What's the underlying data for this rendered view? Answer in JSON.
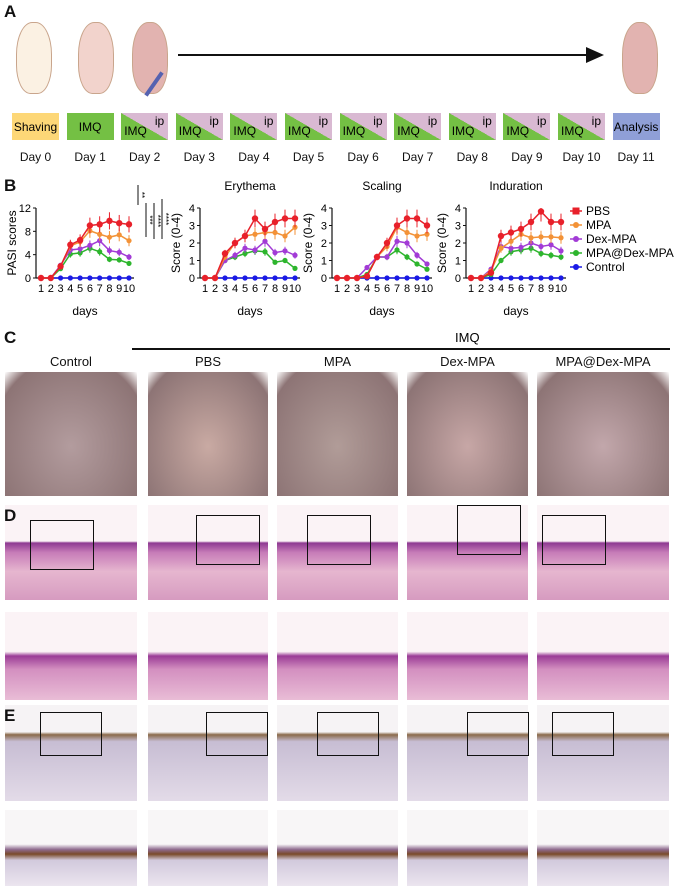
{
  "panelA": {
    "label": "A",
    "boxes": [
      {
        "type": "shaving",
        "text": "Shaving"
      },
      {
        "type": "imq",
        "text": "IMQ"
      },
      {
        "type": "split",
        "a": "IMQ",
        "b": "ip"
      },
      {
        "type": "split",
        "a": "IMQ",
        "b": "ip"
      },
      {
        "type": "split",
        "a": "IMQ",
        "b": "ip"
      },
      {
        "type": "split",
        "a": "IMQ",
        "b": "ip"
      },
      {
        "type": "split",
        "a": "IMQ",
        "b": "ip"
      },
      {
        "type": "split",
        "a": "IMQ",
        "b": "ip"
      },
      {
        "type": "split",
        "a": "IMQ",
        "b": "ip"
      },
      {
        "type": "split",
        "a": "IMQ",
        "b": "ip"
      },
      {
        "type": "split",
        "a": "IMQ",
        "b": "ip"
      },
      {
        "type": "analysis",
        "text": "Analysis"
      }
    ],
    "days": [
      "Day 0",
      "Day 1",
      "Day 2",
      "Day 3",
      "Day 4",
      "Day 5",
      "Day 6",
      "Day 7",
      "Day 8",
      "Day 9",
      "Day 10",
      "Day 11"
    ]
  },
  "panelB": {
    "label": "B",
    "significance": [
      "**",
      "***",
      "****",
      "****"
    ]
  },
  "chart_data": [
    {
      "type": "line",
      "title": "",
      "ylabel": "PASI scores",
      "xlabel": "days",
      "ylim": [
        0,
        12
      ],
      "yticks": [
        0,
        4,
        8,
        12
      ],
      "x": [
        1,
        2,
        3,
        4,
        5,
        6,
        7,
        8,
        9,
        10
      ],
      "series": [
        {
          "name": "PBS",
          "values": [
            0,
            0,
            2,
            5.7,
            6.5,
            9,
            9.2,
            9.8,
            9.4,
            9.2
          ]
        },
        {
          "name": "MPA",
          "values": [
            0,
            0,
            2,
            5.5,
            6.2,
            8.1,
            7.5,
            7,
            7.4,
            6.4
          ]
        },
        {
          "name": "Dex-MPA",
          "values": [
            0,
            0,
            2.2,
            4.8,
            5,
            5.6,
            6.4,
            4.7,
            4.4,
            3.6
          ]
        },
        {
          "name": "MPA@Dex-MPA",
          "values": [
            0,
            0,
            1.6,
            4.1,
            4.3,
            5.1,
            4.5,
            3.2,
            3.1,
            2.5
          ]
        },
        {
          "name": "Control",
          "values": [
            0,
            0,
            0,
            0,
            0,
            0,
            0,
            0,
            0,
            0
          ]
        }
      ]
    },
    {
      "type": "line",
      "title": "Erythema",
      "ylabel": "Score (0-4)",
      "xlabel": "days",
      "ylim": [
        0,
        4
      ],
      "yticks": [
        0,
        1,
        2,
        3,
        4
      ],
      "x": [
        1,
        2,
        3,
        4,
        5,
        6,
        7,
        8,
        9,
        10
      ],
      "series": [
        {
          "name": "PBS",
          "values": [
            0,
            0,
            1.4,
            2,
            2.4,
            3.4,
            2.8,
            3.2,
            3.4,
            3.4
          ]
        },
        {
          "name": "MPA",
          "values": [
            0,
            0,
            1.2,
            2,
            2.4,
            2.5,
            2.6,
            2.6,
            2.4,
            2.9
          ]
        },
        {
          "name": "Dex-MPA",
          "values": [
            0,
            0,
            1,
            1.3,
            1.7,
            1.6,
            2.1,
            1.45,
            1.55,
            1.3
          ]
        },
        {
          "name": "MPA@Dex-MPA",
          "values": [
            0,
            0,
            1,
            1.2,
            1.4,
            1.55,
            1.5,
            0.9,
            1,
            0.55
          ]
        },
        {
          "name": "Control",
          "values": [
            0,
            0,
            0,
            0,
            0,
            0,
            0,
            0,
            0,
            0
          ]
        }
      ]
    },
    {
      "type": "line",
      "title": "Scaling",
      "ylabel": "Score (0-4)",
      "xlabel": "days",
      "ylim": [
        0,
        4
      ],
      "yticks": [
        0,
        1,
        2,
        3,
        4
      ],
      "x": [
        1,
        2,
        3,
        4,
        5,
        6,
        7,
        8,
        9,
        10
      ],
      "series": [
        {
          "name": "PBS",
          "values": [
            0,
            0,
            0,
            0.1,
            1.2,
            2,
            3,
            3.4,
            3.4,
            3
          ]
        },
        {
          "name": "MPA",
          "values": [
            0,
            0,
            0,
            0.1,
            1.2,
            1.8,
            2.9,
            2.6,
            2.4,
            2.5
          ]
        },
        {
          "name": "Dex-MPA",
          "values": [
            0,
            0,
            0,
            0.6,
            1.2,
            1.2,
            2.1,
            2,
            1.3,
            0.8
          ]
        },
        {
          "name": "MPA@Dex-MPA",
          "values": [
            0,
            0,
            0,
            0.2,
            1.2,
            1.2,
            1.6,
            1.2,
            0.8,
            0.5
          ]
        },
        {
          "name": "Control",
          "values": [
            0,
            0,
            0,
            0,
            0,
            0,
            0,
            0,
            0,
            0
          ]
        }
      ]
    },
    {
      "type": "line",
      "title": "Induration",
      "ylabel": "Score (0-4)",
      "xlabel": "days",
      "ylim": [
        0,
        4
      ],
      "yticks": [
        0,
        1,
        2,
        3,
        4
      ],
      "x": [
        1,
        2,
        3,
        4,
        5,
        6,
        7,
        8,
        9,
        10
      ],
      "series": [
        {
          "name": "PBS",
          "values": [
            0,
            0,
            0.3,
            2.4,
            2.6,
            2.8,
            3.2,
            3.8,
            3.2,
            3.2
          ]
        },
        {
          "name": "MPA",
          "values": [
            0,
            0,
            0.4,
            1.7,
            2.1,
            2.5,
            2.3,
            2.35,
            2.35,
            2.3
          ]
        },
        {
          "name": "Dex-MPA",
          "values": [
            0,
            0,
            0.5,
            1.8,
            1.7,
            1.75,
            2,
            1.8,
            1.9,
            1.55
          ]
        },
        {
          "name": "MPA@Dex-MPA",
          "values": [
            0,
            0,
            0.2,
            1,
            1.5,
            1.6,
            1.7,
            1.4,
            1.3,
            1.2
          ]
        },
        {
          "name": "Control",
          "values": [
            0,
            0,
            0,
            0,
            0,
            0,
            0,
            0,
            0,
            0
          ]
        }
      ]
    }
  ],
  "legend": [
    {
      "name": "PBS",
      "color": "#e8202a",
      "marker": "square"
    },
    {
      "name": "MPA",
      "color": "#f39237",
      "marker": "diamond"
    },
    {
      "name": "Dex-MPA",
      "color": "#a23bd6",
      "marker": "diamond"
    },
    {
      "name": "MPA@Dex-MPA",
      "color": "#2db52d",
      "marker": "diamond"
    },
    {
      "name": "Control",
      "color": "#1a1ae6",
      "marker": "circle"
    }
  ],
  "panelC": {
    "label": "C",
    "group": "IMQ",
    "columns": [
      "Control",
      "PBS",
      "MPA",
      "Dex-MPA",
      "MPA@Dex-MPA"
    ]
  },
  "panelD": {
    "label": "D"
  },
  "panelE": {
    "label": "E"
  }
}
